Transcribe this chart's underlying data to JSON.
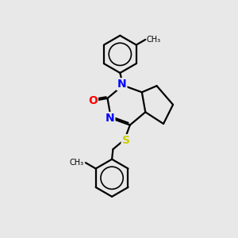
{
  "background_color": "#e8e8e8",
  "bond_color": "#000000",
  "N_color": "#0000ff",
  "O_color": "#ff0000",
  "S_color": "#cccc00",
  "line_width": 1.6,
  "font_size": 10,
  "xlim": [
    0,
    10
  ],
  "ylim": [
    0,
    11
  ]
}
